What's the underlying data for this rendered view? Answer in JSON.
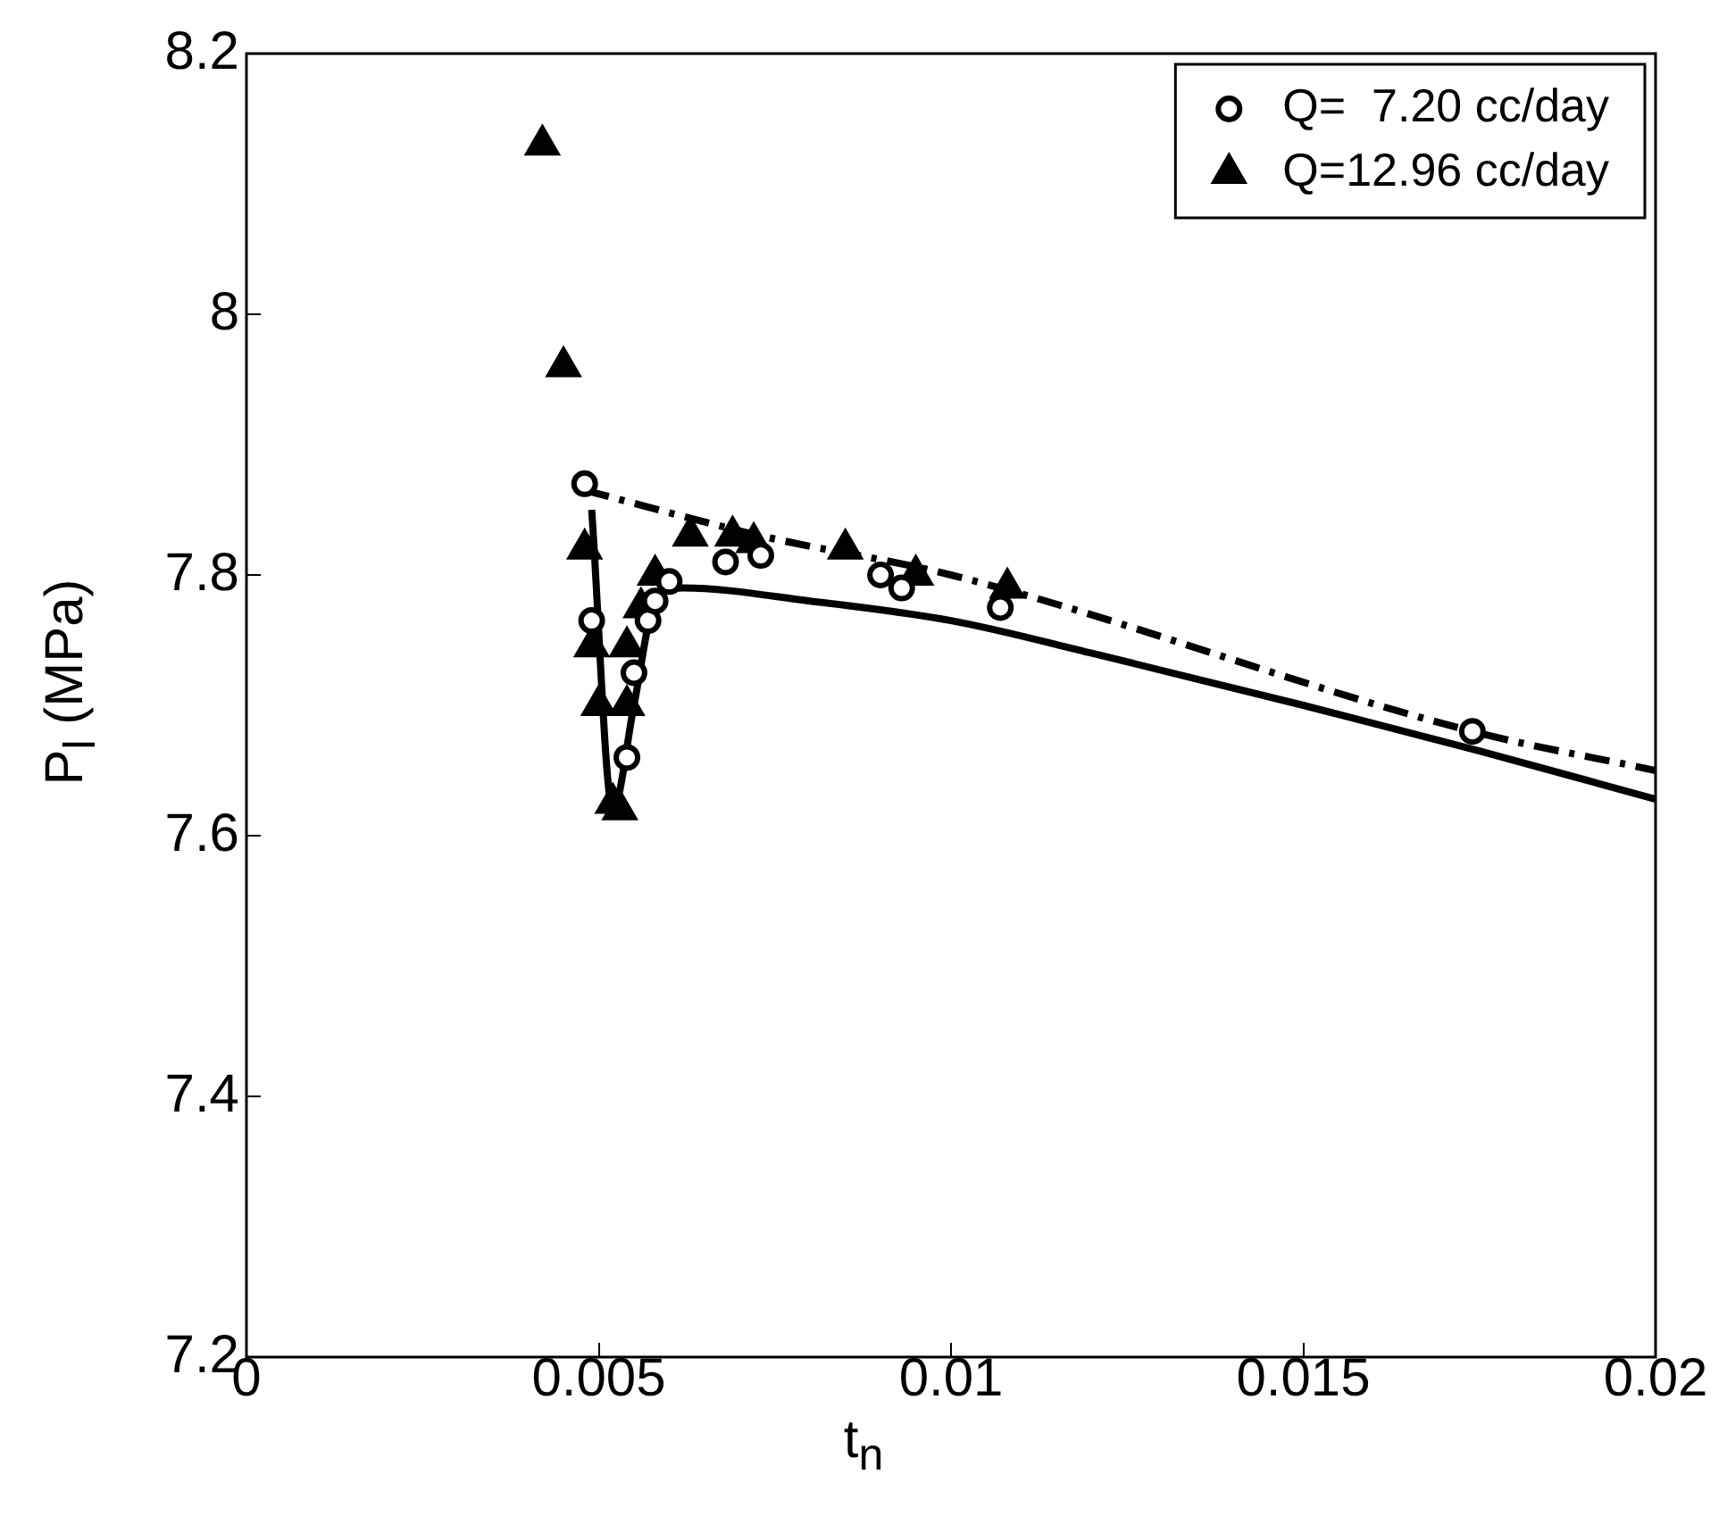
{
  "chart_data": {
    "type": "scatter",
    "xlabel": "t$_{n}$",
    "ylabel": "P$_{l}$  (MPa)",
    "xlim": [
      0,
      0.02
    ],
    "xticks": [
      0,
      0.005,
      0.01,
      0.015,
      0.02
    ],
    "ylim": [
      7.2,
      8.2
    ],
    "yticks": [
      7.2,
      7.4,
      7.6,
      7.8,
      8,
      8.2
    ],
    "grid": false,
    "legend": "top right",
    "series": [
      {
        "name": "Q=  7.20 cc/day",
        "type": "scatter",
        "marker": "circle",
        "color": "#000000",
        "x": [
          0.0048,
          0.0049,
          0.0053,
          0.0054,
          0.0055,
          0.0057,
          0.0058,
          0.006,
          0.0068,
          0.0073,
          0.009,
          0.0093,
          0.0107,
          0.0174
        ],
        "values": [
          7.87,
          7.765,
          null,
          7.66,
          7.725,
          7.765,
          7.78,
          7.795,
          7.81,
          7.815,
          7.8,
          7.79,
          7.775,
          7.68
        ]
      },
      {
        "name": "Q=12.96 cc/day",
        "type": "scatter",
        "marker": "triangle",
        "color": "#000000",
        "x": [
          0.0042,
          0.0045,
          0.0048,
          0.0049,
          0.005,
          0.0052,
          0.0053,
          0.0054,
          0.0054,
          0.0056,
          0.0058,
          0.0063,
          0.0069,
          0.0072,
          0.0085,
          0.0095,
          0.0108
        ],
        "values": [
          8.13,
          7.96,
          7.82,
          7.745,
          7.7,
          7.625,
          7.62,
          7.7,
          7.745,
          7.775,
          7.8,
          7.83,
          7.83,
          7.825,
          7.82,
          7.8,
          7.79
        ]
      },
      {
        "type": "line",
        "line_style": "solid",
        "color": "#000000",
        "x": [
          0.0049,
          0.0052,
          0.0055,
          0.0058,
          0.0062,
          0.008,
          0.01,
          0.012,
          0.015,
          0.0175,
          0.02
        ],
        "values": [
          7.85,
          7.62,
          7.7,
          7.78,
          7.79,
          7.78,
          7.765,
          7.74,
          7.7,
          7.665,
          7.628
        ]
      },
      {
        "type": "line",
        "line_style": "dashdot",
        "color": "#000000",
        "x": [
          0.0048,
          0.0073,
          0.01,
          0.0174,
          0.02
        ],
        "values": [
          7.865,
          7.83,
          7.8,
          7.68,
          7.65
        ]
      }
    ]
  }
}
